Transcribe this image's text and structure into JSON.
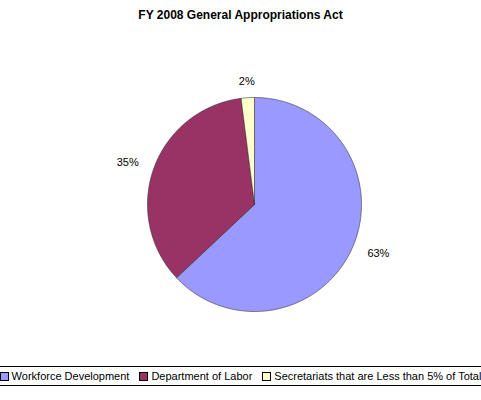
{
  "chart_data": {
    "type": "pie",
    "title": "FY 2008 General Appropriations Act",
    "categories": [
      "Workforce Development",
      "Department of Labor",
      "Secretariats that are Less than 5% of Total"
    ],
    "values": [
      63,
      35,
      2
    ],
    "value_labels": [
      "63%",
      "35%",
      "2%"
    ],
    "colors": [
      "#9999ff",
      "#993366",
      "#ffffcc"
    ],
    "data_labels": true,
    "legend": "bottom"
  }
}
